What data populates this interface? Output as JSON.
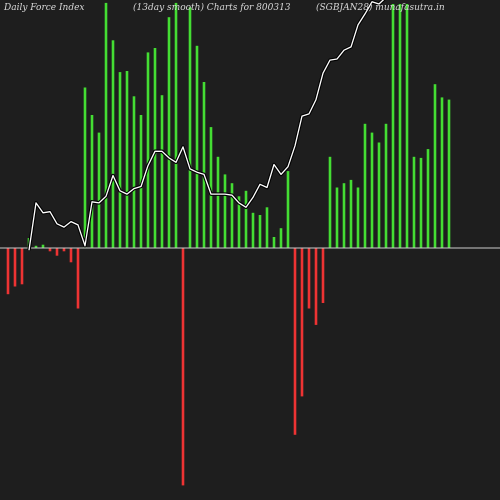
{
  "header": {
    "left": "Daily Force  Index",
    "center": "(13day smooth) Charts for 800313",
    "right": "(SGBJAN28) munafasutra.in"
  },
  "colors": {
    "background": "#1e1e1e",
    "positive": "#44dd33",
    "negative": "#ee3333",
    "zero_line": "#cccccc",
    "smooth_line": "#ffffff"
  },
  "chart_data": {
    "type": "bar",
    "series": [
      {
        "values": [
          -42,
          -35,
          -33,
          9,
          2,
          3,
          -3,
          -7,
          -3,
          -13,
          -55,
          146,
          121,
          105,
          223,
          189,
          160,
          161,
          138,
          121,
          178,
          182,
          139,
          210,
          223,
          -216,
          219,
          184,
          151,
          110,
          83,
          67,
          59,
          47,
          52,
          32,
          30,
          37,
          10,
          18,
          70,
          -170,
          -135,
          -55,
          -70,
          -50,
          83,
          55,
          59,
          62,
          55,
          113,
          105,
          96,
          113,
          222,
          222,
          222,
          83,
          82,
          90,
          149,
          137,
          135
        ]
      },
      {
        "values": [
          -2,
          41,
          32,
          33,
          22,
          19,
          24,
          21,
          2,
          42,
          41,
          47,
          66,
          52,
          49,
          54,
          56,
          75,
          88,
          88,
          82,
          78,
          92,
          72,
          69,
          67,
          49,
          49,
          49,
          48,
          41,
          37,
          46,
          58,
          55,
          76,
          67,
          74,
          93,
          120,
          122,
          135,
          159,
          171,
          172,
          180,
          183,
          203,
          213,
          224,
          222,
          228,
          232,
          236
        ]
      }
    ],
    "ylim": [
      -222,
      222
    ]
  }
}
